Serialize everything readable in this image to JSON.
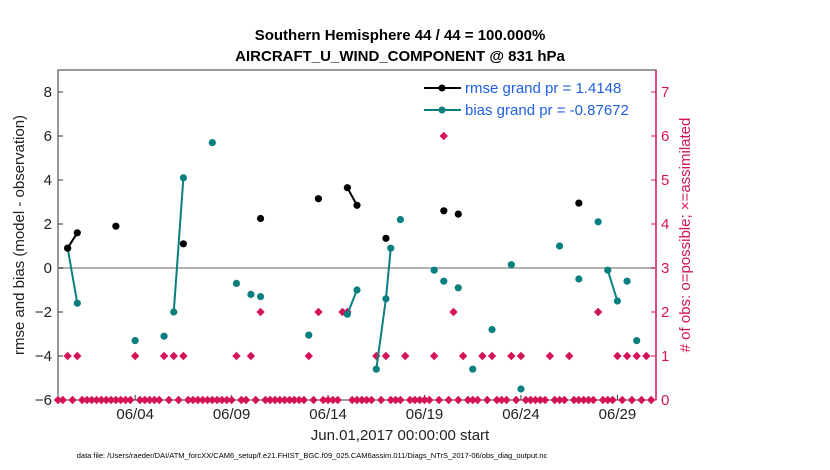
{
  "chart_data": {
    "type": "line",
    "title_line1": "Southern Hemisphere 44 / 44 = 100.000%",
    "title_line2": "AIRCRAFT_U_WIND_COMPONENT @ 831 hPa",
    "xlabel": "Jun.01,2017 00:00:00 start",
    "ylabel": "rmse and bias (model - observation)",
    "y2label": "# of obs: o=possible; ×=assimilated",
    "xlim": [
      0,
      31
    ],
    "ylim": [
      -6,
      9
    ],
    "y2lim": [
      0,
      7.5
    ],
    "x_ticks": [
      4,
      9,
      14,
      19,
      24,
      29
    ],
    "x_tick_labels": [
      "06/04",
      "06/09",
      "06/14",
      "06/19",
      "06/24",
      "06/29"
    ],
    "y_ticks": [
      -6,
      -4,
      -2,
      0,
      2,
      4,
      6,
      8
    ],
    "y_tick_labels": [
      "−6",
      "−4",
      "−2",
      "0",
      "2",
      "4",
      "6",
      "8"
    ],
    "y2_ticks": [
      0,
      1,
      2,
      3,
      4,
      5,
      6,
      7
    ],
    "y2_tick_labels": [
      "0",
      "1",
      "2",
      "3",
      "4",
      "5",
      "6",
      "7"
    ],
    "legend": [
      {
        "label": "rmse grand pr = 1.4148",
        "color": "#000000"
      },
      {
        "label": "bias grand pr = -0.87672",
        "color": "#0a7f7f"
      }
    ],
    "colors": {
      "rmse": "#000000",
      "bias": "#0a7f7f",
      "obs": "#d4145a",
      "zero": "#b0b0b0"
    },
    "rmse_points": [
      [
        0.5,
        0.9
      ],
      [
        1.0,
        1.6
      ],
      [
        3.0,
        1.9
      ],
      [
        6.5,
        1.1
      ],
      [
        10.5,
        2.25
      ],
      [
        13.5,
        3.15
      ],
      [
        15.0,
        3.65
      ],
      [
        15.5,
        2.85
      ],
      [
        17.0,
        1.35
      ],
      [
        20.0,
        2.6
      ],
      [
        20.75,
        2.45
      ],
      [
        27.0,
        2.95
      ]
    ],
    "rmse_segments": [
      [
        [
          0.5,
          0.9
        ],
        [
          1.0,
          1.6
        ]
      ],
      [
        [
          15.0,
          3.65
        ],
        [
          15.5,
          2.85
        ]
      ]
    ],
    "bias_points": [
      [
        0.5,
        0.9
      ],
      [
        1.0,
        -1.6
      ],
      [
        4.0,
        -3.3
      ],
      [
        5.5,
        -3.1
      ],
      [
        6.0,
        -2.0
      ],
      [
        6.5,
        4.1
      ],
      [
        8.0,
        5.7
      ],
      [
        9.25,
        -0.7
      ],
      [
        10.0,
        -1.2
      ],
      [
        10.5,
        -1.3
      ],
      [
        13.0,
        -3.05
      ],
      [
        15.0,
        -2.1
      ],
      [
        15.5,
        -1.0
      ],
      [
        16.5,
        -4.6
      ],
      [
        17.0,
        -1.4
      ],
      [
        17.25,
        0.9
      ],
      [
        17.75,
        2.2
      ],
      [
        19.5,
        -0.1
      ],
      [
        20.0,
        -0.6
      ],
      [
        20.75,
        -0.9
      ],
      [
        21.5,
        -4.6
      ],
      [
        22.5,
        -2.8
      ],
      [
        23.5,
        0.15
      ],
      [
        24.0,
        -5.5
      ],
      [
        26.0,
        1.0
      ],
      [
        27.0,
        -0.5
      ],
      [
        28.0,
        2.1
      ],
      [
        28.5,
        -0.1
      ],
      [
        29.0,
        -1.5
      ],
      [
        29.5,
        -0.6
      ],
      [
        30.0,
        -3.3
      ]
    ],
    "bias_segments": [
      [
        [
          0.5,
          0.9
        ],
        [
          1.0,
          -1.6
        ]
      ],
      [
        [
          6.0,
          -2.0
        ],
        [
          6.5,
          4.1
        ]
      ],
      [
        [
          15.0,
          -2.1
        ],
        [
          15.5,
          -1.0
        ]
      ],
      [
        [
          16.5,
          -4.6
        ],
        [
          17.0,
          -1.4
        ]
      ],
      [
        [
          17.0,
          -1.4
        ],
        [
          17.25,
          0.9
        ]
      ],
      [
        [
          28.5,
          -0.1
        ],
        [
          29.0,
          -1.5
        ]
      ]
    ],
    "obs_x": [
      0,
      0.25,
      0.5,
      0.75,
      1,
      1.25,
      1.5,
      1.75,
      2,
      2.25,
      2.5,
      2.75,
      3,
      3.25,
      3.5,
      3.75,
      4,
      4.25,
      4.5,
      4.75,
      5,
      5.25,
      5.5,
      5.75,
      6,
      6.25,
      6.5,
      6.75,
      7,
      7.25,
      7.5,
      7.75,
      8,
      8.25,
      8.5,
      8.75,
      9,
      9.25,
      9.5,
      9.75,
      10,
      10.25,
      10.5,
      10.75,
      11,
      11.25,
      11.5,
      11.75,
      12,
      12.25,
      12.5,
      12.75,
      13,
      13.25,
      13.5,
      13.75,
      14,
      14.25,
      14.5,
      14.75,
      15,
      15.25,
      15.5,
      15.75,
      16,
      16.25,
      16.5,
      16.75,
      17,
      17.25,
      17.5,
      17.75,
      18,
      18.25,
      18.5,
      18.75,
      19,
      19.25,
      19.5,
      19.75,
      20,
      20.25,
      20.5,
      20.75,
      21,
      21.25,
      21.5,
      21.75,
      22,
      22.25,
      22.5,
      22.75,
      23,
      23.25,
      23.5,
      23.75,
      24,
      24.25,
      24.5,
      24.75,
      25,
      25.25,
      25.5,
      25.75,
      26,
      26.25,
      26.5,
      26.75,
      27,
      27.25,
      27.5,
      27.75,
      28,
      28.25,
      28.5,
      28.75,
      29,
      29.25,
      29.5,
      29.75,
      30,
      30.25,
      30.5,
      30.75
    ],
    "obs_counts": [
      0,
      0,
      1,
      0,
      1,
      0,
      0,
      0,
      0,
      0,
      0,
      0,
      0,
      0,
      0,
      0,
      1,
      0,
      0,
      0,
      0,
      0,
      1,
      0,
      1,
      0,
      1,
      0,
      0,
      0,
      0,
      0,
      0,
      0,
      0,
      0,
      0,
      1,
      0,
      0,
      1,
      0,
      2,
      0,
      0,
      0,
      0,
      0,
      0,
      0,
      0,
      0,
      1,
      0,
      2,
      0,
      0,
      0,
      0,
      2,
      2,
      0,
      0,
      0,
      0,
      0,
      1,
      0,
      1,
      0,
      0,
      0,
      1,
      0,
      0,
      0,
      0,
      0,
      1,
      0,
      6,
      0,
      2,
      0,
      1,
      0,
      0,
      0,
      1,
      0,
      1,
      0,
      0,
      0,
      1,
      0,
      1,
      0,
      0,
      0,
      0,
      0,
      1,
      0,
      0,
      0,
      1,
      0,
      0,
      0,
      0,
      0,
      2,
      0,
      0,
      0,
      1,
      0,
      1,
      0,
      1,
      0,
      1,
      0,
      0,
      0
    ],
    "footnote": "data file: /Users/raeder/DAI/ATM_forcXX/CAM6_setup/f.e21.FHIST_BGC.f09_025.CAM6assim.011/Diags_NTrS_2017-06/obs_diag_output.nc"
  }
}
